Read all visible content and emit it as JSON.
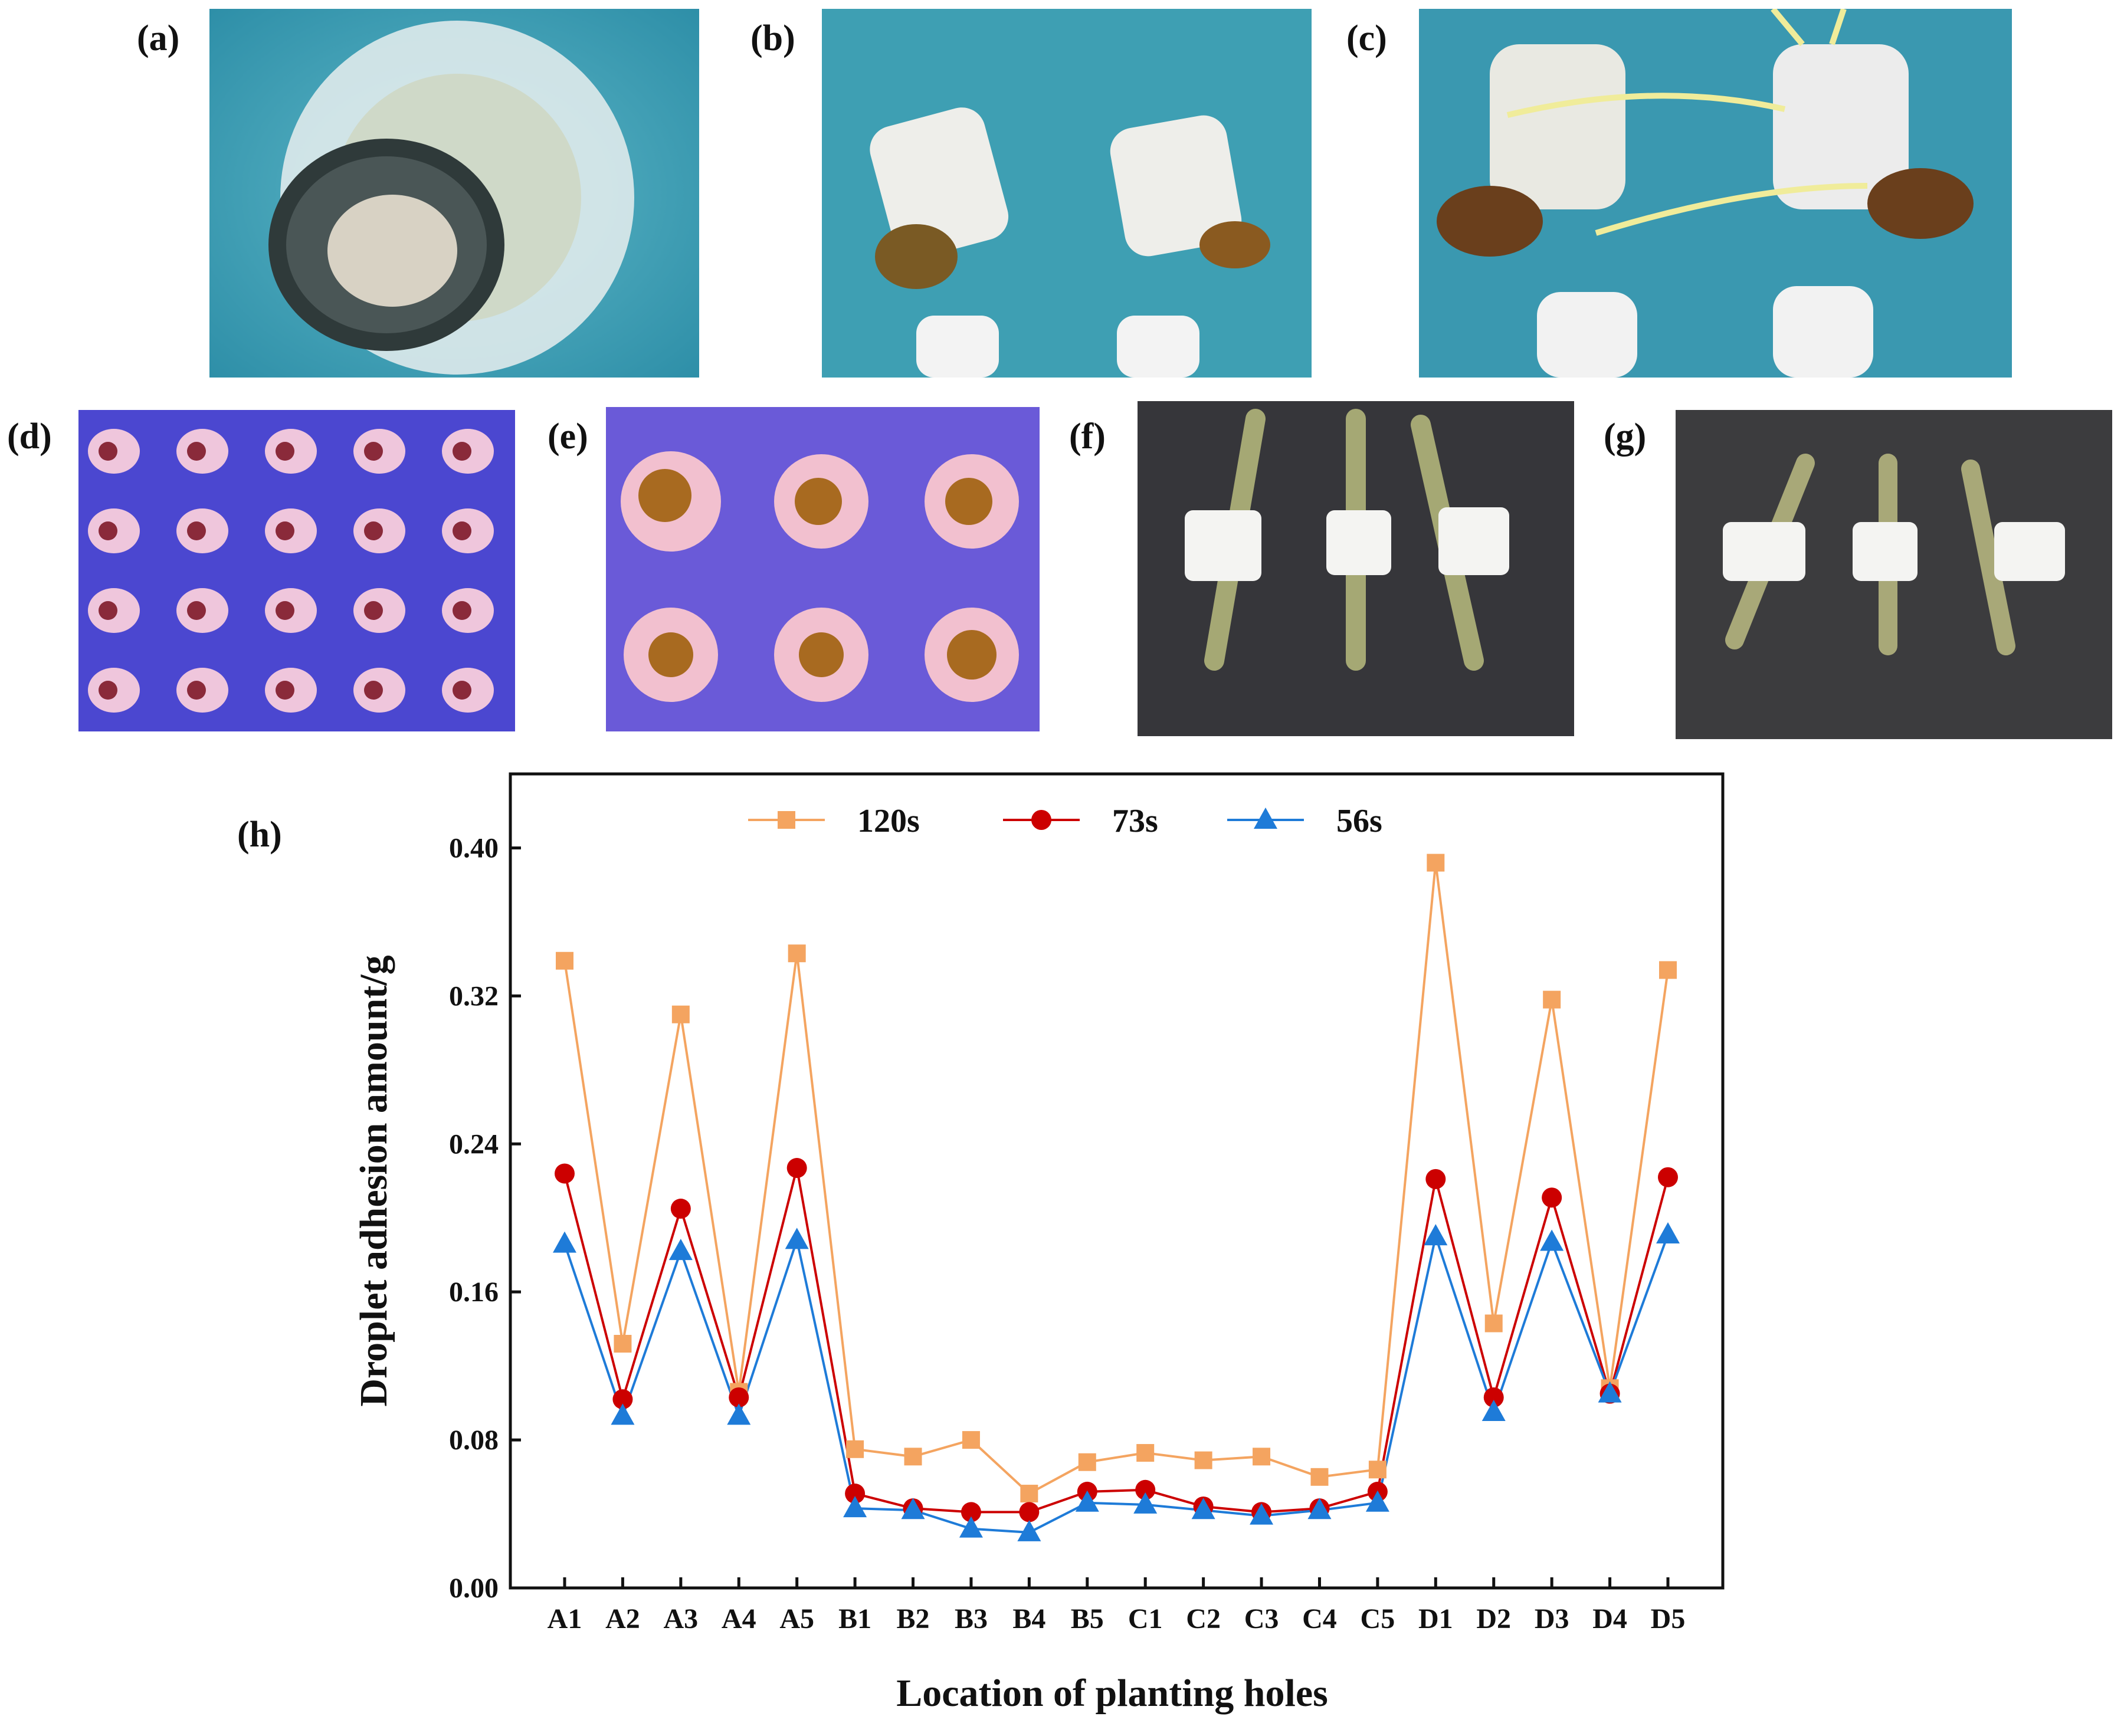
{
  "panels": {
    "a": "(a)",
    "b": "(b)",
    "c": "(c)",
    "d": "(d)",
    "e": "(e)",
    "f": "(f)",
    "g": "(g)",
    "h": "(h)"
  },
  "colors": {
    "series_120s": "#F4A460",
    "series_73s": "#CC0000",
    "series_56s": "#1E7BD8",
    "water_blue": "#3FA3B8",
    "violet_bg": "#5A4FD8",
    "dark_bench": "#3A3A3C",
    "foam_white": "#F2F2F2"
  },
  "chart_data": {
    "type": "line",
    "title": "",
    "xlabel": "Location of planting holes",
    "ylabel": "Droplet adhesion amount/g",
    "ylim": [
      0,
      0.44
    ],
    "yticks": [
      "0.00",
      "0.08",
      "0.16",
      "0.24",
      "0.32",
      "0.40"
    ],
    "legend_position": "top-center",
    "categories": [
      "A1",
      "A2",
      "A3",
      "A4",
      "A5",
      "B1",
      "B2",
      "B3",
      "B4",
      "B5",
      "C1",
      "C2",
      "C3",
      "C4",
      "C5",
      "D1",
      "D2",
      "D3",
      "D4",
      "D5"
    ],
    "series": [
      {
        "name": "120s",
        "marker": "square",
        "values": [
          0.339,
          0.132,
          0.31,
          0.106,
          0.343,
          0.075,
          0.071,
          0.08,
          0.051,
          0.068,
          0.073,
          0.069,
          0.071,
          0.06,
          0.064,
          0.392,
          0.143,
          0.318,
          0.108,
          0.334
        ]
      },
      {
        "name": "73s",
        "marker": "circle",
        "values": [
          0.224,
          0.102,
          0.205,
          0.103,
          0.227,
          0.051,
          0.043,
          0.041,
          0.041,
          0.052,
          0.053,
          0.044,
          0.041,
          0.043,
          0.052,
          0.221,
          0.103,
          0.211,
          0.105,
          0.222
        ]
      },
      {
        "name": "56s",
        "marker": "triangle",
        "values": [
          0.186,
          0.093,
          0.182,
          0.093,
          0.188,
          0.043,
          0.042,
          0.032,
          0.03,
          0.046,
          0.045,
          0.042,
          0.039,
          0.042,
          0.046,
          0.19,
          0.095,
          0.187,
          0.105,
          0.191
        ]
      }
    ]
  }
}
